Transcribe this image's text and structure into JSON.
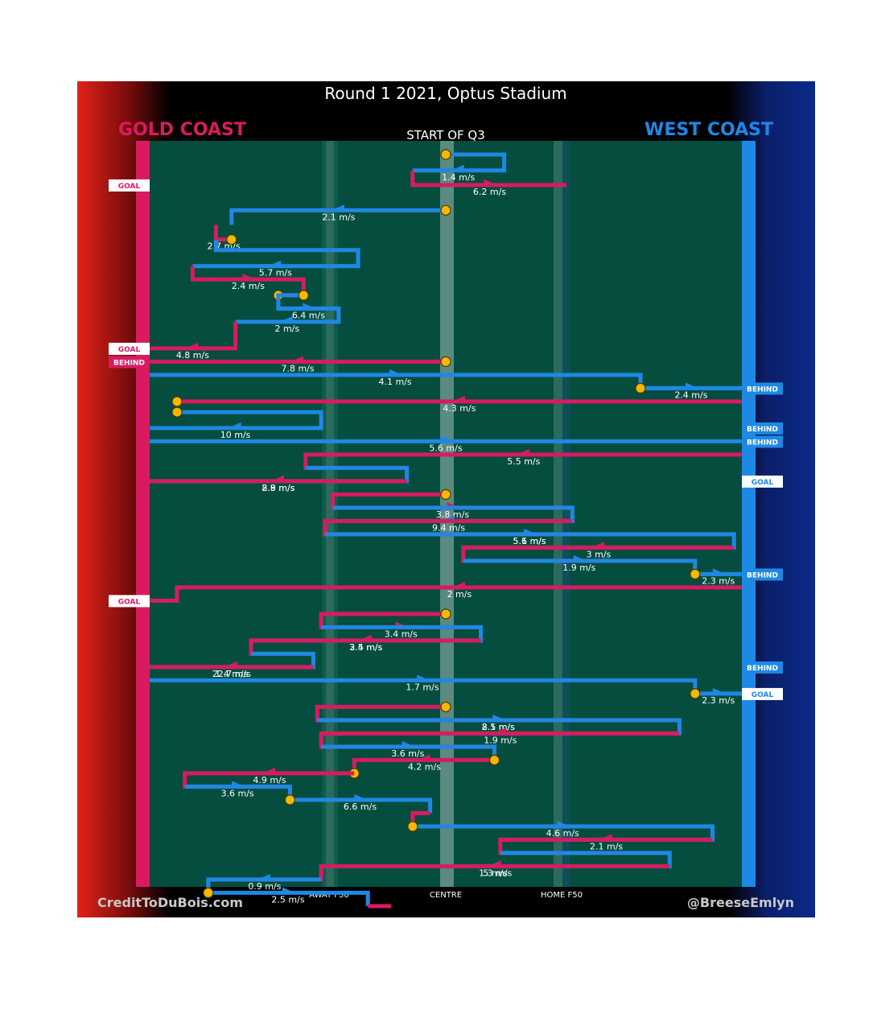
{
  "chart_data": {
    "type": "line",
    "title": "Round 1 2021, Optus Stadium",
    "subtitle": "START OF Q3",
    "home_team": "WEST COAST",
    "away_team": "GOLD COAST",
    "home_color": "#1e88e5",
    "away_color": "#d81b60",
    "x_tick_labels": [
      "AWAY F50",
      "CENTRE",
      "HOME F50"
    ],
    "credit_left": "CreditToDuBois.com",
    "credit_right": "@BreeseEmlyn",
    "possessions": [
      {
        "team": "home",
        "speed": "1.4 m/s",
        "path": [
          [
            0,
            1
          ],
          [
            30,
            1
          ],
          [
            30,
            2.2
          ],
          [
            -17,
            2.2
          ]
        ],
        "start": "ball"
      },
      {
        "team": "away",
        "speed": "6.2 m/s",
        "path": [
          [
            -17,
            2.2
          ],
          [
            -17,
            3.3
          ],
          [
            62,
            3.3
          ]
        ],
        "end": "GOAL"
      },
      {
        "team": "home",
        "speed": "2.1 m/s",
        "path": [
          [
            0,
            5.2
          ],
          [
            -110,
            5.2
          ],
          [
            -110,
            6.3
          ]
        ],
        "start": "ball"
      },
      {
        "team": "away",
        "speed": "2.7 m/s",
        "path": [
          [
            -118,
            6.3
          ],
          [
            -118,
            7.4
          ],
          [
            -110,
            7.4
          ]
        ],
        "end": "ball"
      },
      {
        "team": "home",
        "speed": "5.7 m/s",
        "path": [
          [
            -118,
            7.4
          ],
          [
            -118,
            8.2
          ],
          [
            -45,
            8.2
          ],
          [
            -45,
            9.4
          ],
          [
            -130,
            9.4
          ]
        ]
      },
      {
        "team": "away",
        "speed": "2.4 m/s",
        "path": [
          [
            -130,
            9.4
          ],
          [
            -130,
            10.4
          ],
          [
            -73,
            10.4
          ],
          [
            -73,
            11.6
          ],
          [
            -86,
            11.6
          ]
        ],
        "end": "ball"
      },
      {
        "team": "home",
        "speed": "6.4 m/s",
        "path": [
          [
            -73,
            11.6
          ],
          [
            -86,
            11.6
          ],
          [
            -86,
            12.6
          ],
          [
            -55,
            12.6
          ]
        ],
        "start": "ball"
      },
      {
        "team": "home",
        "speed": "2 m/s",
        "path": [
          [
            -86,
            12.6
          ],
          [
            -55,
            12.6
          ],
          [
            -55,
            13.6
          ],
          [
            -108,
            13.6
          ]
        ]
      },
      {
        "team": "away",
        "speed": "4.8 m/s",
        "path": [
          [
            -108,
            13.6
          ],
          [
            -108,
            15.6
          ],
          [
            -152,
            15.6
          ]
        ],
        "end": "GOAL"
      },
      {
        "team": "away",
        "speed": "7.8 m/s",
        "path": [
          [
            0,
            16.6
          ],
          [
            -152,
            16.6
          ]
        ],
        "start": "ball",
        "end": "BEHIND"
      },
      {
        "team": "home",
        "speed": "4.1 m/s",
        "path": [
          [
            -152,
            17.6
          ],
          [
            100,
            17.6
          ],
          [
            100,
            18.6
          ],
          [
            152,
            18.6
          ]
        ],
        "end": "BEHIND"
      },
      {
        "team": "home",
        "speed": "2.4 m/s",
        "path": [
          [
            100,
            18.6
          ],
          [
            152,
            18.6
          ]
        ],
        "start": "ball"
      },
      {
        "team": "away",
        "speed": "4.3 m/s",
        "path": [
          [
            152,
            19.6
          ],
          [
            -138,
            19.6
          ]
        ],
        "end": "ball"
      },
      {
        "team": "home",
        "speed": "10 m/s",
        "path": [
          [
            -138,
            20.4
          ],
          [
            -64,
            20.4
          ],
          [
            -64,
            21.6
          ],
          [
            -152,
            21.6
          ]
        ],
        "start": "ball",
        "end": "BEHIND"
      },
      {
        "team": "home",
        "speed": "5.6 m/s",
        "path": [
          [
            -152,
            22.6
          ],
          [
            152,
            22.6
          ]
        ],
        "end": "BEHIND"
      },
      {
        "team": "away",
        "speed": "5.5 m/s",
        "path": [
          [
            152,
            23.6
          ],
          [
            -72,
            23.6
          ],
          [
            -72,
            24.6
          ],
          [
            -20,
            24.6
          ]
        ]
      },
      {
        "team": "home",
        "speed": "2.8 m/s",
        "path": [
          [
            -72,
            24.6
          ],
          [
            -20,
            24.6
          ],
          [
            -20,
            25.6
          ],
          [
            -152,
            25.6
          ]
        ],
        "end": "GOAL"
      },
      {
        "team": "away",
        "speed": "8.9 m/s",
        "path": [
          [
            -20,
            25.6
          ],
          [
            -152,
            25.6
          ]
        ]
      },
      {
        "team": "away",
        "speed": "3.8 m/s",
        "path": [
          [
            0,
            26.6
          ],
          [
            -58,
            26.6
          ],
          [
            -58,
            27.6
          ],
          [
            65,
            27.6
          ]
        ],
        "start": "ball"
      },
      {
        "team": "home",
        "speed": "9.4 m/s",
        "path": [
          [
            -58,
            27.6
          ],
          [
            65,
            27.6
          ],
          [
            65,
            28.6
          ],
          [
            -62,
            28.6
          ]
        ]
      },
      {
        "team": "away",
        "speed": "5.6 m/s",
        "path": [
          [
            65,
            28.6
          ],
          [
            -62,
            28.6
          ],
          [
            -62,
            29.6
          ],
          [
            148,
            29.6
          ]
        ]
      },
      {
        "team": "home",
        "speed": "5.1 m/s",
        "path": [
          [
            -62,
            29.6
          ],
          [
            148,
            29.6
          ],
          [
            148,
            30.6
          ],
          [
            9,
            30.6
          ]
        ]
      },
      {
        "team": "away",
        "speed": "3 m/s",
        "path": [
          [
            148,
            30.6
          ],
          [
            9,
            30.6
          ],
          [
            9,
            31.6
          ],
          [
            128,
            31.6
          ]
        ]
      },
      {
        "team": "home",
        "speed": "1.9 m/s",
        "path": [
          [
            9,
            31.6
          ],
          [
            128,
            31.6
          ],
          [
            128,
            32.6
          ]
        ],
        "end": "ball"
      },
      {
        "team": "home",
        "speed": "2.3 m/s",
        "path": [
          [
            128,
            32.6
          ],
          [
            152,
            32.6
          ]
        ],
        "start": "ball",
        "end": "BEHIND"
      },
      {
        "team": "away",
        "speed": "2 m/s",
        "path": [
          [
            152,
            33.6
          ],
          [
            -138,
            33.6
          ],
          [
            -138,
            34.6
          ],
          [
            -152,
            34.6
          ]
        ],
        "end": "GOAL"
      },
      {
        "team": "away",
        "speed": "3.4 m/s",
        "path": [
          [
            0,
            35.6
          ],
          [
            -64,
            35.6
          ],
          [
            -64,
            36.6
          ],
          [
            18,
            36.6
          ]
        ],
        "start": "ball"
      },
      {
        "team": "home",
        "speed": "2.5 m/s",
        "path": [
          [
            -64,
            36.6
          ],
          [
            18,
            36.6
          ],
          [
            18,
            37.6
          ],
          [
            -100,
            37.6
          ]
        ]
      },
      {
        "team": "away",
        "speed": "3.4 m/s",
        "path": [
          [
            18,
            37.6
          ],
          [
            -100,
            37.6
          ],
          [
            -100,
            38.6
          ],
          [
            -68,
            38.6
          ]
        ]
      },
      {
        "team": "home",
        "speed": "1.4 m/s",
        "path": [
          [
            -100,
            38.6
          ],
          [
            -68,
            38.6
          ],
          [
            -68,
            39.6
          ],
          [
            -152,
            39.6
          ]
        ],
        "end": "BEHIND"
      },
      {
        "team": "away",
        "speed": "22.7 m/s",
        "path": [
          [
            -68,
            39.6
          ],
          [
            -152,
            39.6
          ]
        ]
      },
      {
        "team": "home",
        "speed": "1.7 m/s",
        "path": [
          [
            -152,
            40.6
          ],
          [
            128,
            40.6
          ],
          [
            128,
            41.6
          ]
        ],
        "end": "ball"
      },
      {
        "team": "home",
        "speed": "2.3 m/s",
        "path": [
          [
            128,
            41.6
          ],
          [
            152,
            41.6
          ]
        ],
        "start": "ball",
        "end": "GOAL"
      },
      {
        "team": "away",
        "speed": "2.1 m/s",
        "path": [
          [
            0,
            42.6
          ],
          [
            -66,
            42.6
          ],
          [
            -66,
            43.6
          ],
          [
            120,
            43.6
          ]
        ],
        "start": "ball"
      },
      {
        "team": "home",
        "speed": "8.5 m/s",
        "path": [
          [
            -66,
            43.6
          ],
          [
            120,
            43.6
          ],
          [
            120,
            44.6
          ],
          [
            -64,
            44.6
          ]
        ]
      },
      {
        "team": "away",
        "speed": "1.9 m/s",
        "path": [
          [
            120,
            44.6
          ],
          [
            -64,
            44.6
          ],
          [
            -64,
            45.6
          ],
          [
            25,
            45.6
          ]
        ]
      },
      {
        "team": "home",
        "speed": "3.6 m/s",
        "path": [
          [
            -64,
            45.6
          ],
          [
            25,
            45.6
          ],
          [
            25,
            46.6
          ]
        ],
        "end": "ball"
      },
      {
        "team": "away",
        "speed": "4.2 m/s",
        "path": [
          [
            25,
            46.6
          ],
          [
            -47,
            46.6
          ],
          [
            -47,
            47.6
          ]
        ],
        "start": "ball",
        "end": "ball"
      },
      {
        "team": "away",
        "speed": "4.9 m/s",
        "path": [
          [
            -47,
            47.6
          ],
          [
            -134,
            47.6
          ],
          [
            -134,
            48.6
          ],
          [
            -80,
            48.6
          ]
        ]
      },
      {
        "team": "home",
        "speed": "3.6 m/s",
        "path": [
          [
            -134,
            48.6
          ],
          [
            -80,
            48.6
          ],
          [
            -80,
            49.6
          ]
        ],
        "end": "ball"
      },
      {
        "team": "home",
        "speed": "6.6 m/s",
        "path": [
          [
            -80,
            49.6
          ],
          [
            -8,
            49.6
          ],
          [
            -8,
            50.6
          ]
        ],
        "start": "ball"
      },
      {
        "team": "away",
        "speed": "",
        "path": [
          [
            -8,
            50.6
          ],
          [
            -17,
            50.6
          ],
          [
            -17,
            51.6
          ]
        ],
        "end": "ball"
      },
      {
        "team": "home",
        "speed": "4.6 m/s",
        "path": [
          [
            -17,
            51.6
          ],
          [
            137,
            51.6
          ],
          [
            137,
            52.6
          ],
          [
            28,
            52.6
          ]
        ],
        "start": "ball"
      },
      {
        "team": "away",
        "speed": "2.1 m/s",
        "path": [
          [
            137,
            52.6
          ],
          [
            28,
            52.6
          ],
          [
            28,
            53.6
          ],
          [
            115,
            53.6
          ]
        ]
      },
      {
        "team": "home",
        "speed": "1.3 m/s",
        "path": [
          [
            28,
            53.6
          ],
          [
            115,
            53.6
          ],
          [
            115,
            54.6
          ],
          [
            -64,
            54.6
          ]
        ]
      },
      {
        "team": "away",
        "speed": "5 m/s",
        "path": [
          [
            115,
            54.6
          ],
          [
            -64,
            54.6
          ],
          [
            -64,
            55.6
          ],
          [
            -122,
            55.6
          ]
        ]
      },
      {
        "team": "home",
        "speed": "0.9 m/s",
        "path": [
          [
            -64,
            55.6
          ],
          [
            -122,
            55.6
          ],
          [
            -122,
            56.6
          ]
        ],
        "end": "ball"
      },
      {
        "team": "home",
        "speed": "2.5 m/s",
        "path": [
          [
            -122,
            56.6
          ],
          [
            -40,
            56.6
          ],
          [
            -40,
            57.6
          ]
        ],
        "start": "ball"
      },
      {
        "team": "away",
        "speed": "",
        "path": [
          [
            -40,
            57.6
          ],
          [
            -28,
            57.6
          ]
        ]
      }
    ]
  }
}
